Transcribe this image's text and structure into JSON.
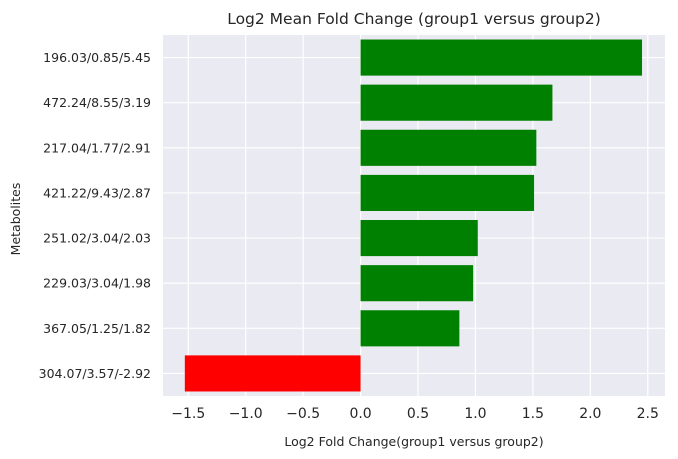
{
  "chart_data": {
    "type": "bar",
    "orientation": "horizontal",
    "title": "Log2 Mean Fold Change (group1 versus group2)",
    "xlabel": "Log2 Fold Change(group1 versus group2)",
    "ylabel": "Metabolites",
    "categories": [
      "196.03/0.85/5.45",
      "472.24/8.55/3.19",
      "217.04/1.77/2.91",
      "421.22/9.43/2.87",
      "251.02/3.04/2.03",
      "229.03/3.04/1.98",
      "367.05/1.25/1.82",
      "304.07/3.57/-2.92"
    ],
    "values": [
      2.45,
      1.67,
      1.53,
      1.51,
      1.02,
      0.98,
      0.86,
      -1.53
    ],
    "xlim": [
      -1.72,
      2.65
    ],
    "xticks": [
      -1.5,
      -1.0,
      -0.5,
      0.0,
      0.5,
      1.0,
      1.5,
      2.0,
      2.5
    ],
    "xtick_labels": [
      "−1.5",
      "−1.0",
      "−0.5",
      "0.0",
      "0.5",
      "1.0",
      "1.5",
      "2.0",
      "2.5"
    ],
    "grid": true,
    "colors": {
      "positive": "#008000",
      "negative": "#ff0000",
      "plot_background": "#eaeaf2",
      "grid": "#ffffff"
    }
  }
}
